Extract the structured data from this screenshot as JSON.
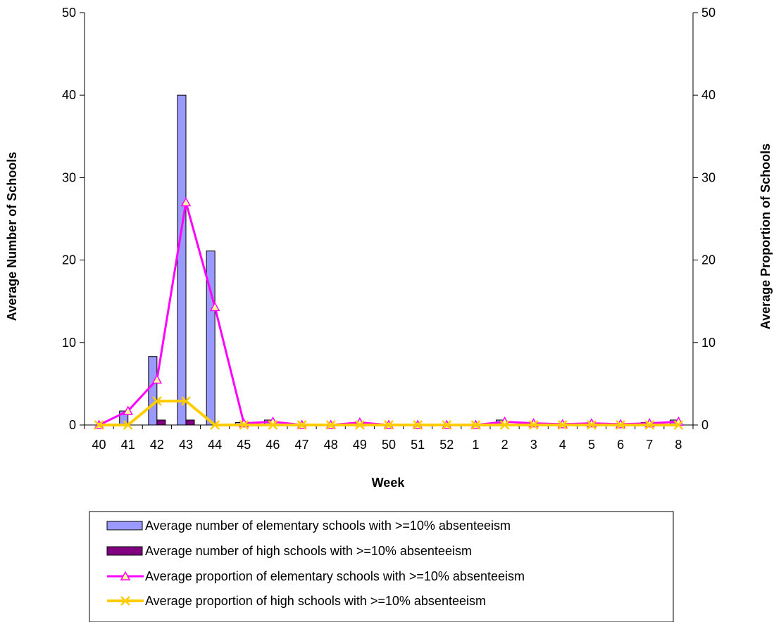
{
  "chart_data": {
    "type": "bar",
    "title": "",
    "xlabel": "Week",
    "ylabel_left": "Average Number of Schools",
    "ylabel_right": "Average Proportion of Schools",
    "ylim_left": [
      0,
      50
    ],
    "ylim_right": [
      0,
      50
    ],
    "yticks_left": [
      "0",
      "10",
      "20",
      "30",
      "40",
      "50"
    ],
    "yticks_right": [
      "0",
      "10",
      "20",
      "30",
      "40",
      "50"
    ],
    "grid": false,
    "legend_position": "bottom",
    "categories": [
      "40",
      "41",
      "42",
      "43",
      "44",
      "45",
      "46",
      "47",
      "48",
      "49",
      "50",
      "51",
      "52",
      "1",
      "2",
      "3",
      "4",
      "5",
      "6",
      "7",
      "8"
    ],
    "series": [
      {
        "name": "Average number of elementary schools with >=10% absenteeism",
        "kind": "bar",
        "axis": "left",
        "color": "#9999ff",
        "values": [
          0,
          1.7,
          8.3,
          40,
          21.1,
          0.3,
          0.6,
          0,
          0,
          0.1,
          0,
          0,
          0,
          0,
          0.6,
          0.1,
          0.1,
          0.1,
          0.1,
          0.3,
          0.6
        ]
      },
      {
        "name": "Average number of high schools with >=10% absenteeism",
        "kind": "bar",
        "axis": "left",
        "color": "#800080",
        "values": [
          0,
          0,
          0.6,
          0.6,
          0,
          0,
          0,
          0,
          0,
          0,
          0,
          0,
          0,
          0,
          0,
          0,
          0,
          0,
          0,
          0,
          0
        ]
      },
      {
        "name": "Average proportion of elementary schools with >=10% absenteeism",
        "kind": "line",
        "axis": "right",
        "color": "#ff00ff",
        "marker": "triangle",
        "values": [
          0,
          1.7,
          5.5,
          27,
          14.3,
          0.2,
          0.4,
          0,
          0,
          0.3,
          0,
          0,
          0,
          0,
          0.4,
          0.2,
          0.1,
          0.2,
          0.1,
          0.2,
          0.4
        ]
      },
      {
        "name": "Average proportion of high schools with >=10% absenteeism",
        "kind": "line",
        "axis": "right",
        "color": "#ffcc00",
        "marker": "x",
        "values": [
          0,
          0,
          2.9,
          2.9,
          0,
          0,
          0,
          0,
          0,
          0,
          0,
          0,
          0,
          0,
          0,
          0,
          0,
          0,
          0,
          0,
          0
        ]
      }
    ]
  }
}
